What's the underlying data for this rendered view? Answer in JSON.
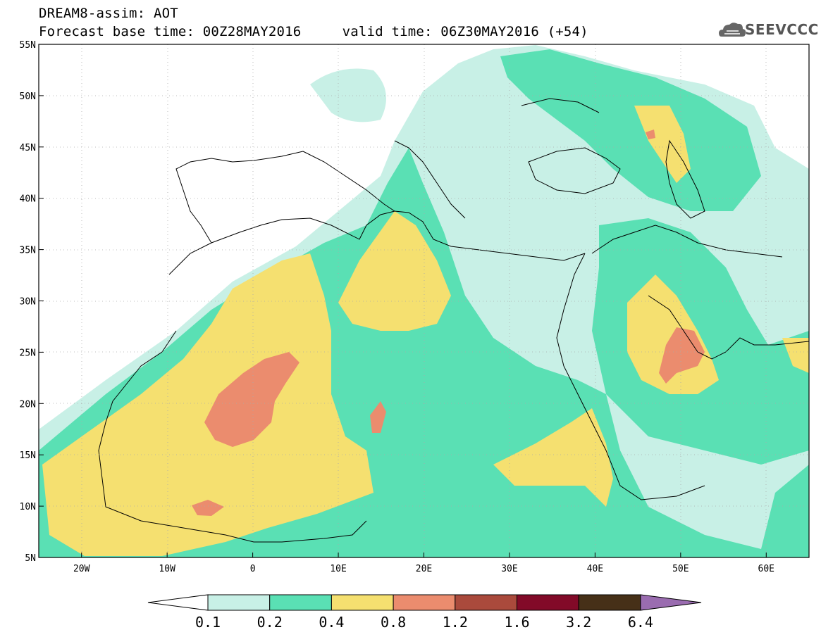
{
  "header": {
    "title_line1": "DREAM8-assim: AOT",
    "title_line2": "Forecast base time: 00Z28MAY2016     valid time: 06Z30MAY2016 (+54)",
    "logo_text": "SEEVCCC"
  },
  "map": {
    "projection": "lat-lon",
    "lon_range": [
      -25,
      65
    ],
    "lat_range": [
      5,
      55
    ],
    "lon_ticks": [
      "20W",
      "10W",
      "0",
      "10E",
      "20E",
      "30E",
      "40E",
      "50E",
      "60E"
    ],
    "lon_tick_values": [
      -20,
      -10,
      0,
      10,
      20,
      30,
      40,
      50,
      60
    ],
    "lat_ticks": [
      "55N",
      "50N",
      "45N",
      "40N",
      "35N",
      "30N",
      "25N",
      "20N",
      "15N",
      "10N",
      "5N"
    ],
    "lat_tick_values": [
      55,
      50,
      45,
      40,
      35,
      30,
      25,
      20,
      15,
      10,
      5
    ],
    "grid": "dotted",
    "field": "Aerosol optical thickness (dust)"
  },
  "colorbar": {
    "labels": [
      "0.1",
      "0.2",
      "0.4",
      "0.8",
      "1.2",
      "1.6",
      "3.2",
      "6.4"
    ],
    "colors": [
      "#c8f0e6",
      "#5ae0b4",
      "#f5e070",
      "#eb8c6e",
      "#aa4a3c",
      "#820a28",
      "#463018"
    ],
    "over_color": "#9a6cb0",
    "under_color": "#ffffff"
  },
  "colors": {
    "level_0_1": "#c8f0e6",
    "level_0_2": "#5ae0b4",
    "level_0_4": "#f5e070",
    "level_0_8": "#eb8c6e"
  },
  "icons": {
    "logo": "cloud-logo-icon"
  }
}
